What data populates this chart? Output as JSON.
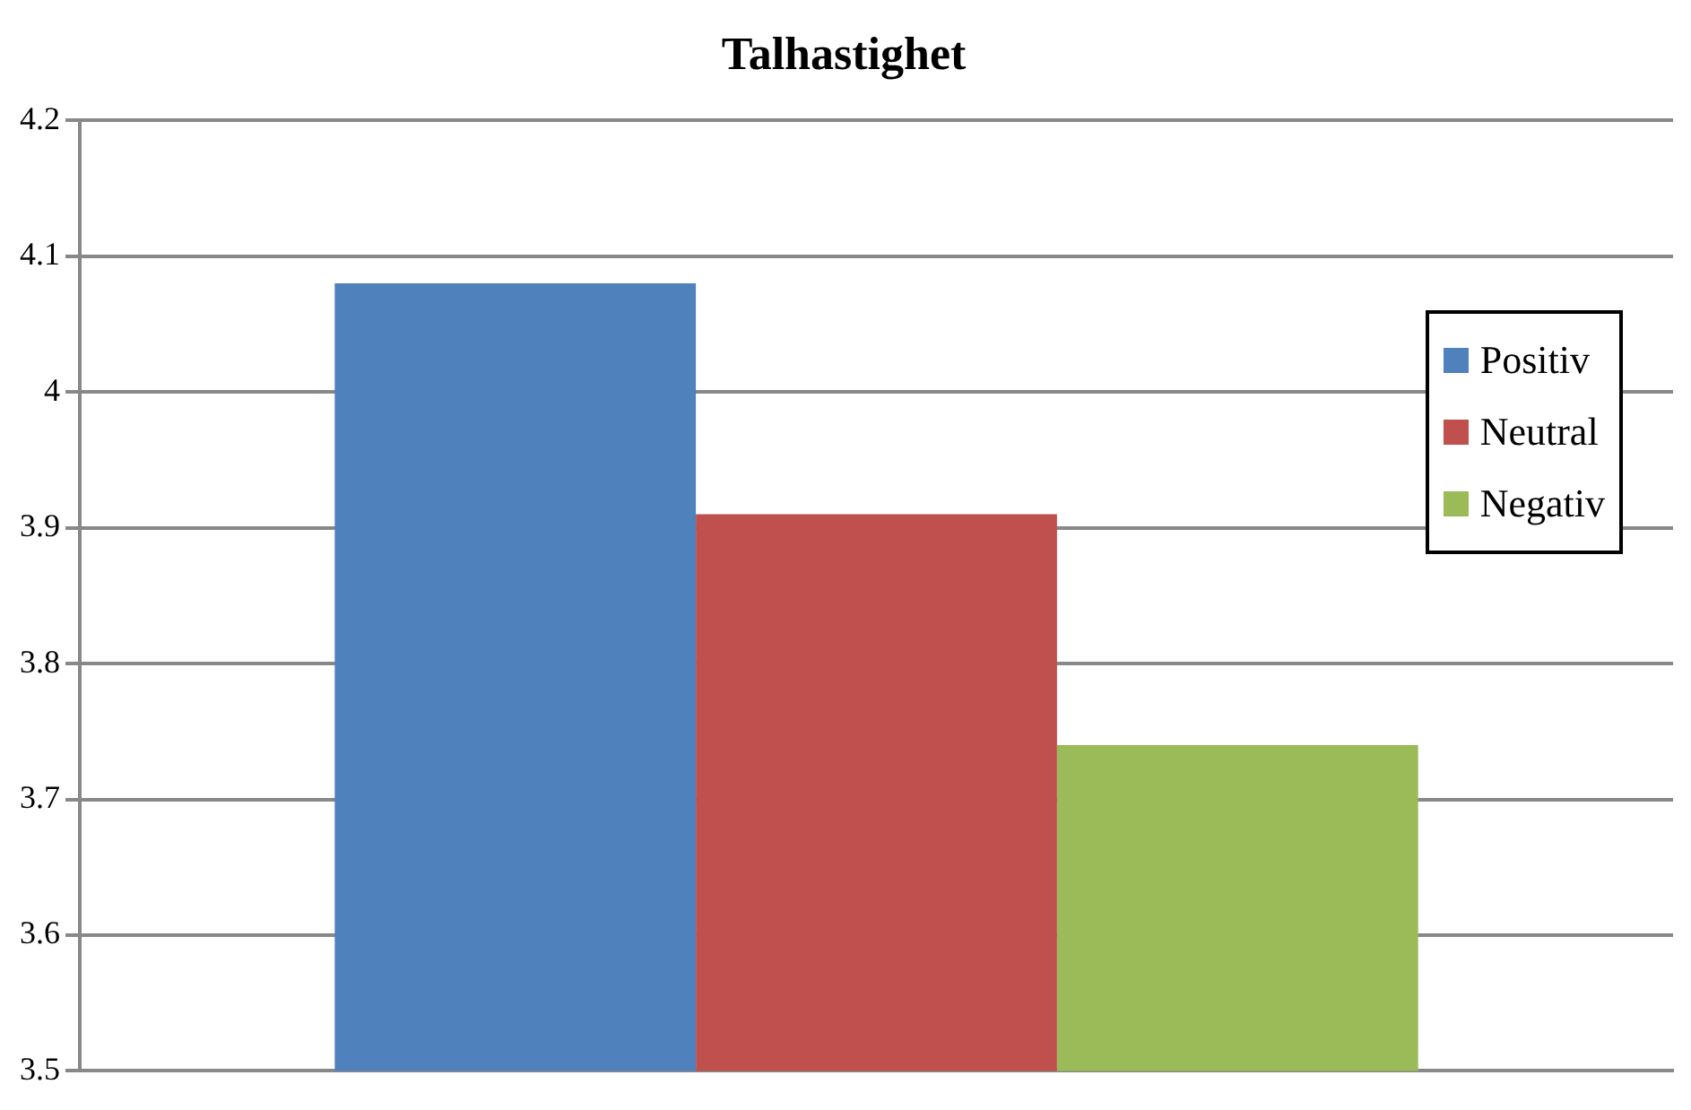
{
  "chart_data": {
    "type": "bar",
    "title": "Talhastighet",
    "categories": [
      null
    ],
    "series": [
      {
        "name": "Positiv",
        "color": "#4f81bd",
        "values": [
          4.08
        ]
      },
      {
        "name": "Neutral",
        "color": "#c0504d",
        "values": [
          3.91
        ]
      },
      {
        "name": "Negativ",
        "color": "#9bbb59",
        "values": [
          3.74
        ]
      }
    ],
    "ylim": [
      3.5,
      4.2
    ],
    "yticks": [
      3.5,
      3.6,
      3.7,
      3.8,
      3.9,
      4,
      4.1,
      4.2
    ],
    "grid": "y",
    "legend": "top right"
  }
}
